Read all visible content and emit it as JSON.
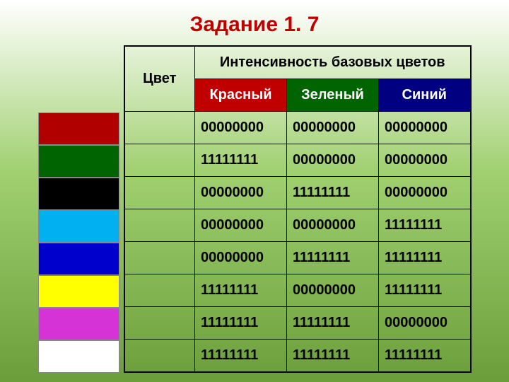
{
  "title": "Задание 1. 7",
  "table": {
    "color_col_label": "Цвет",
    "intensity_label": "Интенсивность базовых цветов",
    "subheaders": {
      "red": {
        "label": "Красный",
        "bg": "#c00000",
        "fg": "#ffffff"
      },
      "green": {
        "label": "Зеленый",
        "bg": "#006400",
        "fg": "#ffffff"
      },
      "blue": {
        "label": "Синий",
        "bg": "#000080",
        "fg": "#ffffff"
      }
    },
    "swatch_colors": [
      "#b00000",
      "#006400",
      "#000000",
      "#00b0f0",
      "#0000cc",
      "#ffff00",
      "#d633d6",
      "#ffffff"
    ],
    "rows": [
      {
        "r": "00000000",
        "g": "00000000",
        "b": "00000000"
      },
      {
        "r": "11111111",
        "g": "00000000",
        "b": "00000000"
      },
      {
        "r": "00000000",
        "g": "11111111",
        "b": "00000000"
      },
      {
        "r": "00000000",
        "g": "00000000",
        "b": "11111111"
      },
      {
        "r": "00000000",
        "g": "11111111",
        "b": "11111111"
      },
      {
        "r": "11111111",
        "g": "00000000",
        "b": "11111111"
      },
      {
        "r": "11111111",
        "g": "11111111",
        "b": "00000000"
      },
      {
        "r": "11111111",
        "g": "11111111",
        "b": "11111111"
      }
    ]
  },
  "styling": {
    "title_color": "#c00000",
    "title_fontsize": 30,
    "cell_fontsize": 20,
    "border_color": "#000000",
    "swatch_border": "#888888",
    "bg_gradient_top": "#ffffff",
    "bg_gradient_mid": "#a0d070",
    "bg_gradient_bottom": "#6b9e3b"
  }
}
